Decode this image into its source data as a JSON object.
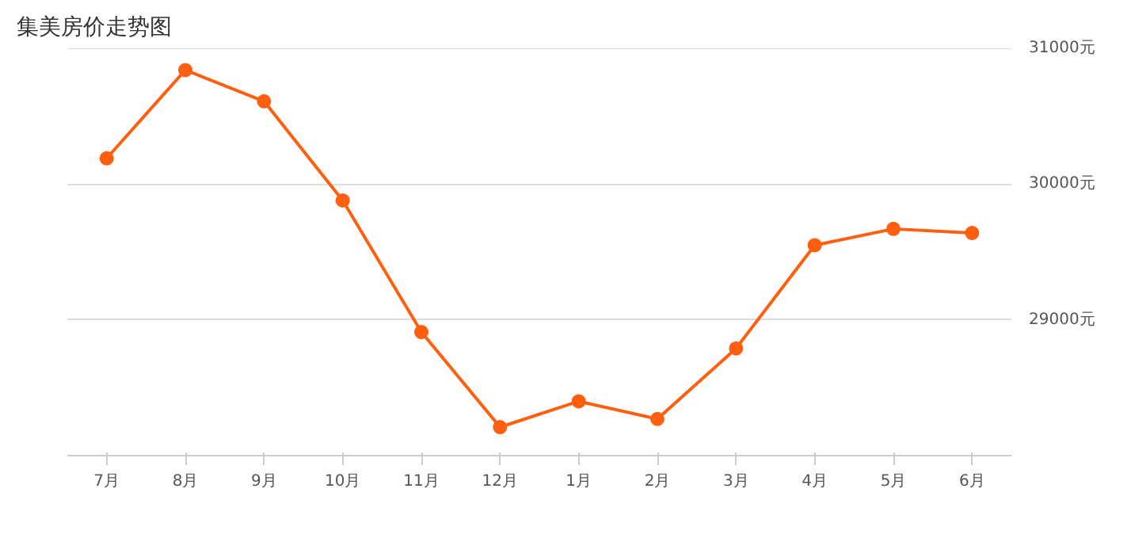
{
  "chart_data": {
    "type": "line",
    "title": "集美房价走势图",
    "categories": [
      "7月",
      "8月",
      "9月",
      "10月",
      "11月",
      "12月",
      "1月",
      "2月",
      "3月",
      "4月",
      "5月",
      "6月"
    ],
    "series": [
      {
        "color": "#ff5f0f",
        "values": [
          30190,
          30840,
          30610,
          29880,
          28910,
          28210,
          28400,
          28270,
          28790,
          29550,
          29670,
          29640
        ]
      }
    ],
    "ylim": [
      28000,
      31000
    ],
    "yticks": [
      {
        "value": 29000,
        "label": "29000元"
      },
      {
        "value": 30000,
        "label": "30000元"
      },
      {
        "value": 31000,
        "label": "31000元"
      }
    ],
    "grid": "y",
    "marker": "circle",
    "line_style": "solid"
  }
}
